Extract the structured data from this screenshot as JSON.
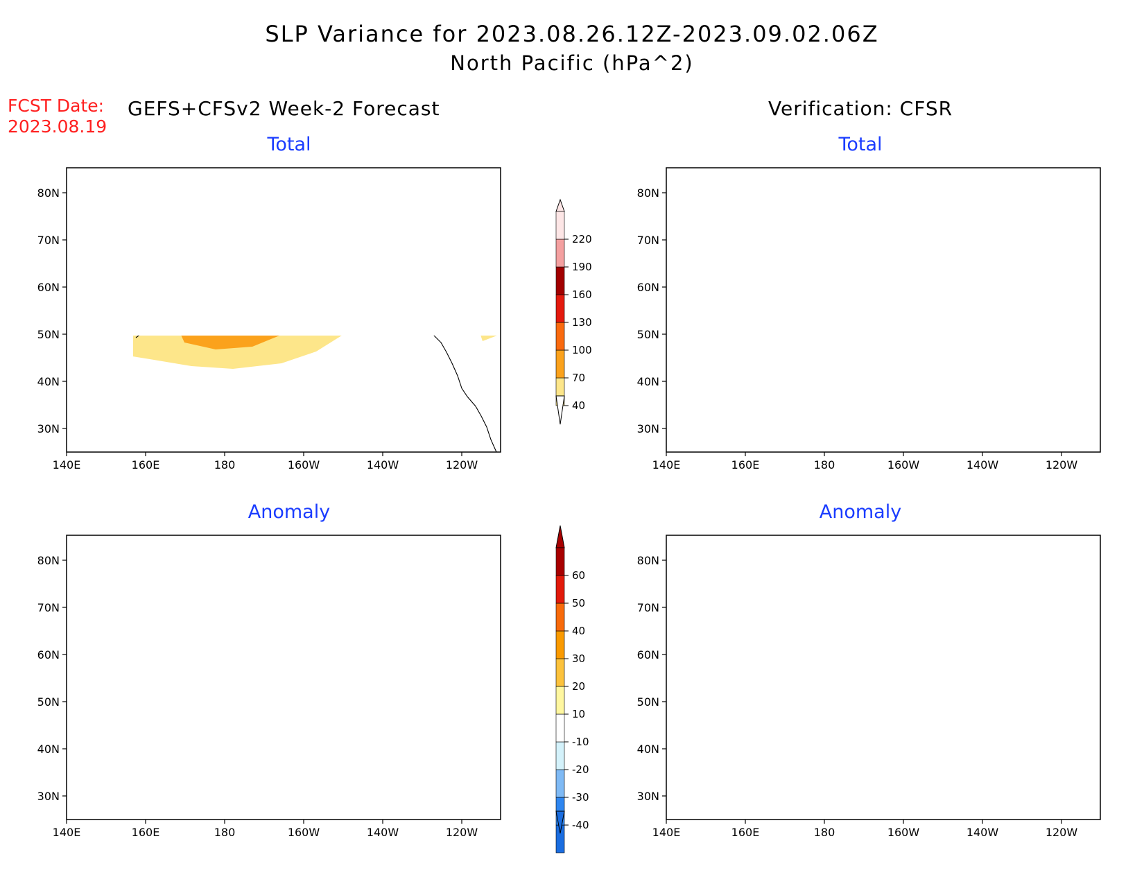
{
  "title": {
    "line1": "SLP Variance for 2023.08.26.12Z-2023.09.02.06Z",
    "line2": "North Pacific (hPa^2)"
  },
  "forecast": {
    "date_label": "FCST Date:",
    "date_value": "2023.08.19",
    "header": "GEFS+CFSv2 Week-2 Forecast"
  },
  "verification": {
    "header": "Verification: CFSR"
  },
  "panels": {
    "fcst_total": "Total",
    "fcst_anomaly": "Anomaly",
    "verif_total": "Total",
    "verif_anomaly": "Anomaly"
  },
  "axes": {
    "lat_labels": [
      "80N",
      "70N",
      "60N",
      "50N",
      "40N",
      "30N"
    ],
    "lon_labels": [
      "140E",
      "160E",
      "180",
      "160W",
      "140W",
      "120W"
    ]
  },
  "colorbars": {
    "total": {
      "levels": [
        "40",
        "70",
        "100",
        "130",
        "160",
        "190",
        "220"
      ],
      "colors": [
        "#fde68a",
        "#fba21c",
        "#fa6a0f",
        "#e41a0e",
        "#a20000",
        "#f4a0a0",
        "#fde6e6"
      ]
    },
    "anomaly": {
      "levels": [
        "-40",
        "-30",
        "-20",
        "-10",
        "10",
        "20",
        "30",
        "40",
        "50",
        "60"
      ],
      "colors": [
        "#1a6de0",
        "#2e86f0",
        "#7fbaf5",
        "#d4f2fb",
        "#ffffff",
        "#fff7a0",
        "#fcc23c",
        "#fa9a00",
        "#f86a0a",
        "#e21a0a",
        "#a80000"
      ]
    }
  }
}
